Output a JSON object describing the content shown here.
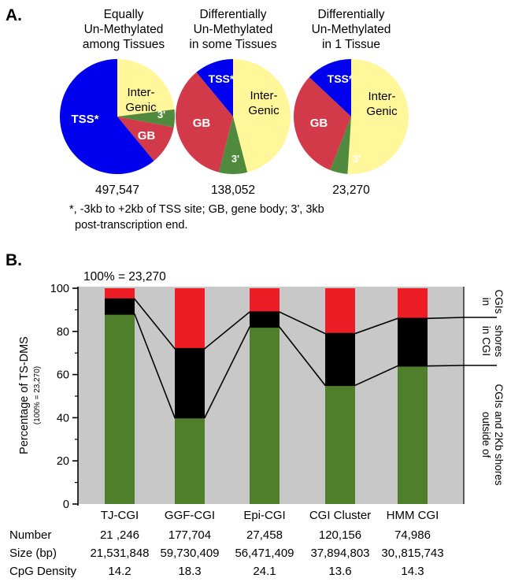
{
  "panel_a": {
    "label": "A.",
    "pie_titles": [
      [
        "Equally",
        "Un-Methylated",
        "among Tissues"
      ],
      [
        "Differentially",
        "Un-Methylated",
        "in some Tissues"
      ],
      [
        "Differentially",
        "Un-Methylated",
        "in 1 Tissue"
      ]
    ],
    "footnote_line1": "*, -3kb to +2kb of TSS site; GB, gene body; 3', 3kb",
    "footnote_line2": "post-transcription end."
  },
  "panel_b": {
    "label": "B.",
    "total_label": "100% = 23,270",
    "ylabel": "Percentage of TS-DMS",
    "ylabel_sub": "(100% = 23,270)",
    "yticks": [
      "0",
      "20",
      "40",
      "60",
      "80",
      "100"
    ],
    "bracket_labels": [
      [
        "in",
        "CGIs"
      ],
      [
        "in CGI",
        "shores"
      ],
      [
        "outside of",
        "CGIs and 2Kb shores"
      ]
    ],
    "table_rows": [
      {
        "label": "Number",
        "values": [
          "21 ,246",
          "177,704",
          "27,458",
          "120,156",
          "74,986"
        ]
      },
      {
        "label": "Size (bp)",
        "values": [
          "21,531,848",
          "59,730,409",
          "56,471,409",
          "37,894,803",
          "30,,815,743"
        ]
      },
      {
        "label": "CpG Density",
        "values": [
          "14.2",
          "18.3",
          "24.1",
          "13.6",
          "14.3"
        ]
      }
    ]
  },
  "chart_data": [
    {
      "type": "pie",
      "title": "Equally Un-Methylated among Tissues",
      "total": "497,547",
      "slices": [
        {
          "label": "Inter-Genic",
          "value": 23,
          "color": "#fff79a"
        },
        {
          "label": "3'",
          "value": 5,
          "color": "#4f8a3e"
        },
        {
          "label": "GB",
          "value": 11,
          "color": "#d23a4a"
        },
        {
          "label": "TSS*",
          "value": 61,
          "color": "#0000ee"
        }
      ]
    },
    {
      "type": "pie",
      "title": "Differentially Un-Methylated in some Tissues",
      "total": "138,052",
      "slices": [
        {
          "label": "Inter-Genic",
          "value": 46,
          "color": "#fff79a"
        },
        {
          "label": "3'",
          "value": 8,
          "color": "#4f8a3e"
        },
        {
          "label": "GB",
          "value": 35,
          "color": "#d23a4a"
        },
        {
          "label": "TSS*",
          "value": 11,
          "color": "#0000ee"
        }
      ]
    },
    {
      "type": "pie",
      "title": "Differentially Un-Methylated in 1 Tissue",
      "total": "23,270",
      "slices": [
        {
          "label": "Inter-Genic",
          "value": 51,
          "color": "#fff79a"
        },
        {
          "label": "3'",
          "value": 5,
          "color": "#4f8a3e"
        },
        {
          "label": "GB",
          "value": 31,
          "color": "#d23a4a"
        },
        {
          "label": "TSS*",
          "value": 13,
          "color": "#0000ee"
        }
      ]
    },
    {
      "type": "bar",
      "stacked": true,
      "categories": [
        "TJ-CGI",
        "GGF-CGI",
        "Epi-CGI",
        "CGI Cluster",
        "HMM CGI"
      ],
      "ylabel": "Percentage of TS-DMS",
      "ylim": [
        0,
        100
      ],
      "yticks": [
        0,
        20,
        40,
        60,
        80,
        100
      ],
      "background": "#c8c8c8",
      "series": [
        {
          "name": "outside of CGIs and 2Kb shores",
          "color": "#4f7f2a",
          "values": [
            88,
            40,
            82,
            55,
            64
          ]
        },
        {
          "name": "in CGI shores",
          "color": "#000000",
          "values": [
            7,
            32,
            7,
            24,
            22
          ]
        },
        {
          "name": "in CGIs",
          "color": "#ee1c25",
          "values": [
            5,
            28,
            11,
            21,
            14
          ]
        }
      ]
    }
  ]
}
